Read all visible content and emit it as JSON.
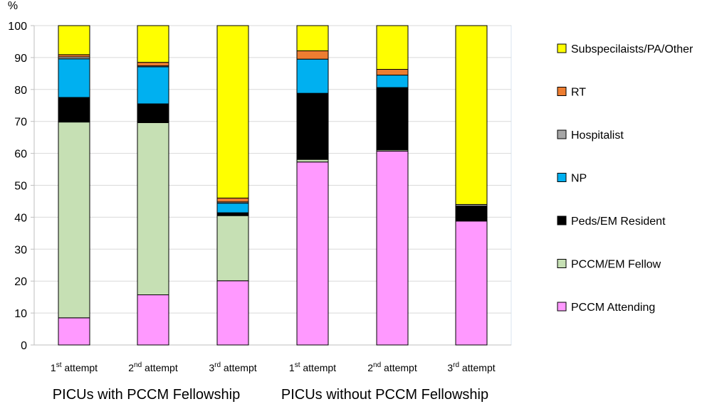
{
  "chart_data": {
    "type": "bar",
    "stacked": true,
    "ylabel": "%",
    "ylim": [
      0,
      100
    ],
    "yticks": [
      "0",
      "10",
      "20",
      "30",
      "40",
      "50",
      "60",
      "70",
      "80",
      "90",
      "100"
    ],
    "grid": true,
    "legend_position": "right",
    "categories": [
      {
        "base": "1",
        "sup": "st",
        "rest": " attempt"
      },
      {
        "base": "2",
        "sup": "nd",
        "rest": " attempt"
      },
      {
        "base": "3",
        "sup": "rd",
        "rest": " attempt"
      },
      {
        "base": "1",
        "sup": "st",
        "rest": " attempt"
      },
      {
        "base": "2",
        "sup": "nd",
        "rest": " attempt"
      },
      {
        "base": "3",
        "sup": "rd",
        "rest": " attempt"
      }
    ],
    "groups": [
      {
        "label": "PICUs with PCCM Fellowship",
        "categories": [
          0,
          1,
          2
        ]
      },
      {
        "label": "PICUs without PCCM Fellowship",
        "categories": [
          3,
          4,
          5
        ]
      }
    ],
    "series": [
      {
        "name": "PCCM Attending",
        "color": "#FF99FF",
        "values": [
          8.5,
          15.7,
          20.1,
          57.3,
          60.7,
          38.8
        ]
      },
      {
        "name": "PCCM/EM Fellow",
        "color": "#C6E0B4",
        "values": [
          61.3,
          53.9,
          20.4,
          0.8,
          0.4,
          0.0
        ]
      },
      {
        "name": "Peds/EM Resident",
        "color": "#000000",
        "values": [
          7.7,
          5.9,
          0.9,
          20.7,
          19.5,
          4.7
        ]
      },
      {
        "name": "NP",
        "color": "#00B0F0",
        "values": [
          12.1,
          11.6,
          3.0,
          10.7,
          3.9,
          0.0
        ]
      },
      {
        "name": "Hospitalist",
        "color": "#A6A6A6",
        "values": [
          0.6,
          0.3,
          0.4,
          0.0,
          0.0,
          0.5
        ]
      },
      {
        "name": "RT",
        "color": "#ED7D31",
        "values": [
          0.7,
          1.1,
          1.2,
          2.6,
          1.8,
          0.0
        ]
      },
      {
        "name": "Subspecilaists/PA/Other",
        "color": "#FFFF00",
        "values": [
          9.1,
          11.5,
          54.0,
          7.9,
          13.7,
          56.0
        ]
      }
    ]
  }
}
